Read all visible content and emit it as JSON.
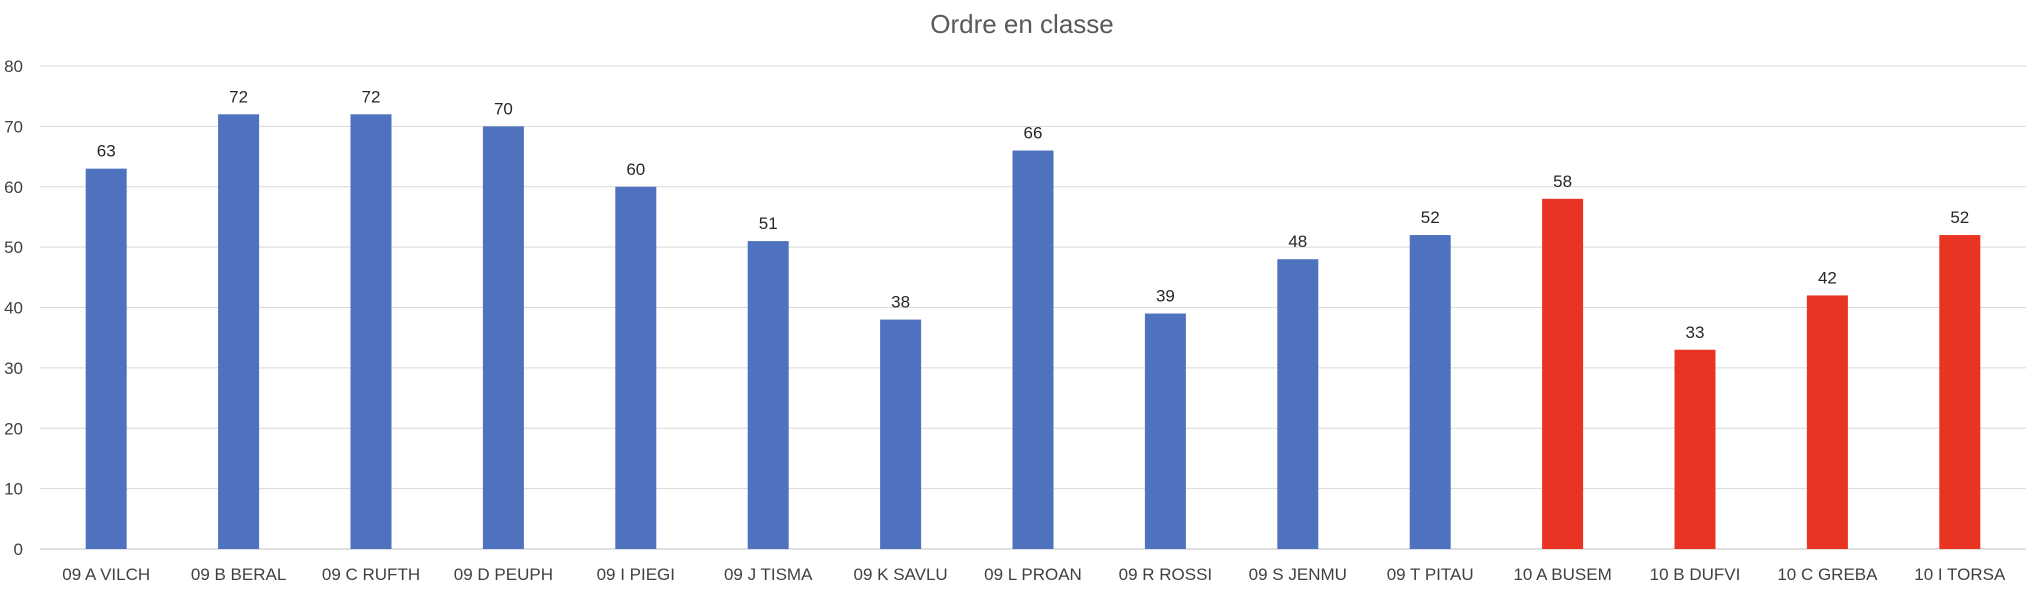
{
  "chart_data": {
    "type": "bar",
    "title": "Ordre en classe",
    "xlabel": "",
    "ylabel": "",
    "ylim": [
      0,
      80
    ],
    "yticks": [
      0,
      10,
      20,
      30,
      40,
      50,
      60,
      70,
      80
    ],
    "grid": true,
    "legend": "none",
    "categories": [
      "09 A VILCH",
      "09 B BERAL",
      "09 C RUFTH",
      "09 D PEUPH",
      "09 I PIEGI",
      "09 J TISMA",
      "09 K SAVLU",
      "09 L PROAN",
      "09 R ROSSI",
      "09 S JENMU",
      "09 T PITAU",
      "10 A BUSEM",
      "10 B DUFVI",
      "10 C GREBA",
      "10 I TORSA"
    ],
    "values": [
      63,
      72,
      72,
      70,
      60,
      51,
      38,
      66,
      39,
      48,
      52,
      58,
      33,
      42,
      52
    ],
    "bar_colors": [
      "#4f72bf",
      "#4f72bf",
      "#4f72bf",
      "#4f72bf",
      "#4f72bf",
      "#4f72bf",
      "#4f72bf",
      "#4f72bf",
      "#4f72bf",
      "#4f72bf",
      "#4f72bf",
      "#e93323",
      "#e93323",
      "#e93323",
      "#e93323"
    ],
    "data_labels": true
  }
}
